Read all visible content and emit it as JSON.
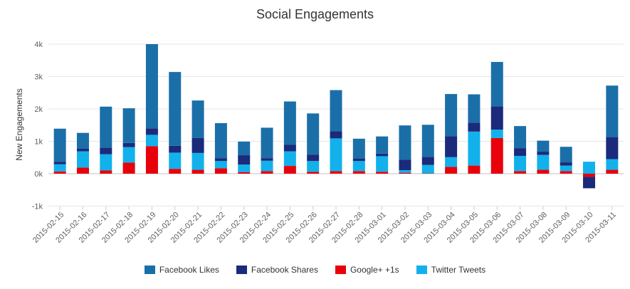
{
  "chart_data": {
    "type": "bar",
    "stacked": true,
    "title": "Social Engagements",
    "xlabel": "",
    "ylabel": "New Engagements",
    "ylim": [
      -1000,
      4000
    ],
    "yticks": [
      -1000,
      0,
      1000,
      2000,
      3000,
      4000
    ],
    "ytick_labels": [
      "-1k",
      "0k",
      "1k",
      "2k",
      "3k",
      "4k"
    ],
    "grid": true,
    "legend_position": "bottom-center",
    "categories": [
      "2015-02-15",
      "2015-02-16",
      "2015-02-17",
      "2015-02-18",
      "2015-02-19",
      "2015-02-20",
      "2015-02-21",
      "2015-02-22",
      "2015-02-23",
      "2015-02-24",
      "2015-02-25",
      "2015-02-26",
      "2015-02-27",
      "2015-02-28",
      "2015-03-01",
      "2015-03-02",
      "2015-03-03",
      "2015-03-04",
      "2015-03-05",
      "2015-03-06",
      "2015-03-07",
      "2015-03-08",
      "2015-03-09",
      "2015-03-10",
      "2015-03-11"
    ],
    "series": [
      {
        "name": "Facebook Likes",
        "color": "#1a6fa8",
        "values": [
          1020,
          490,
          1270,
          1070,
          2600,
          2280,
          1160,
          1080,
          420,
          940,
          1340,
          1270,
          1270,
          610,
          530,
          1060,
          990,
          1300,
          880,
          1370,
          690,
          340,
          480,
          0,
          1590
        ]
      },
      {
        "name": "Facebook Shares",
        "color": "#1b2a7a",
        "values": [
          80,
          80,
          200,
          130,
          200,
          210,
          460,
          90,
          290,
          80,
          200,
          200,
          220,
          80,
          80,
          320,
          250,
          650,
          270,
          720,
          230,
          100,
          100,
          -350,
          680
        ]
      },
      {
        "name": "Google+ +1s",
        "color": "#e8000b",
        "values": [
          70,
          190,
          100,
          340,
          850,
          150,
          120,
          170,
          50,
          80,
          240,
          60,
          80,
          80,
          60,
          30,
          10,
          210,
          250,
          1100,
          80,
          120,
          80,
          -100,
          120
        ]
      },
      {
        "name": "Twitter Tweets",
        "color": "#12b1ec",
        "values": [
          220,
          500,
          500,
          480,
          350,
          500,
          520,
          220,
          230,
          320,
          450,
          330,
          1010,
          310,
          480,
          80,
          260,
          300,
          1050,
          260,
          470,
          460,
          170,
          370,
          330
        ]
      }
    ]
  }
}
